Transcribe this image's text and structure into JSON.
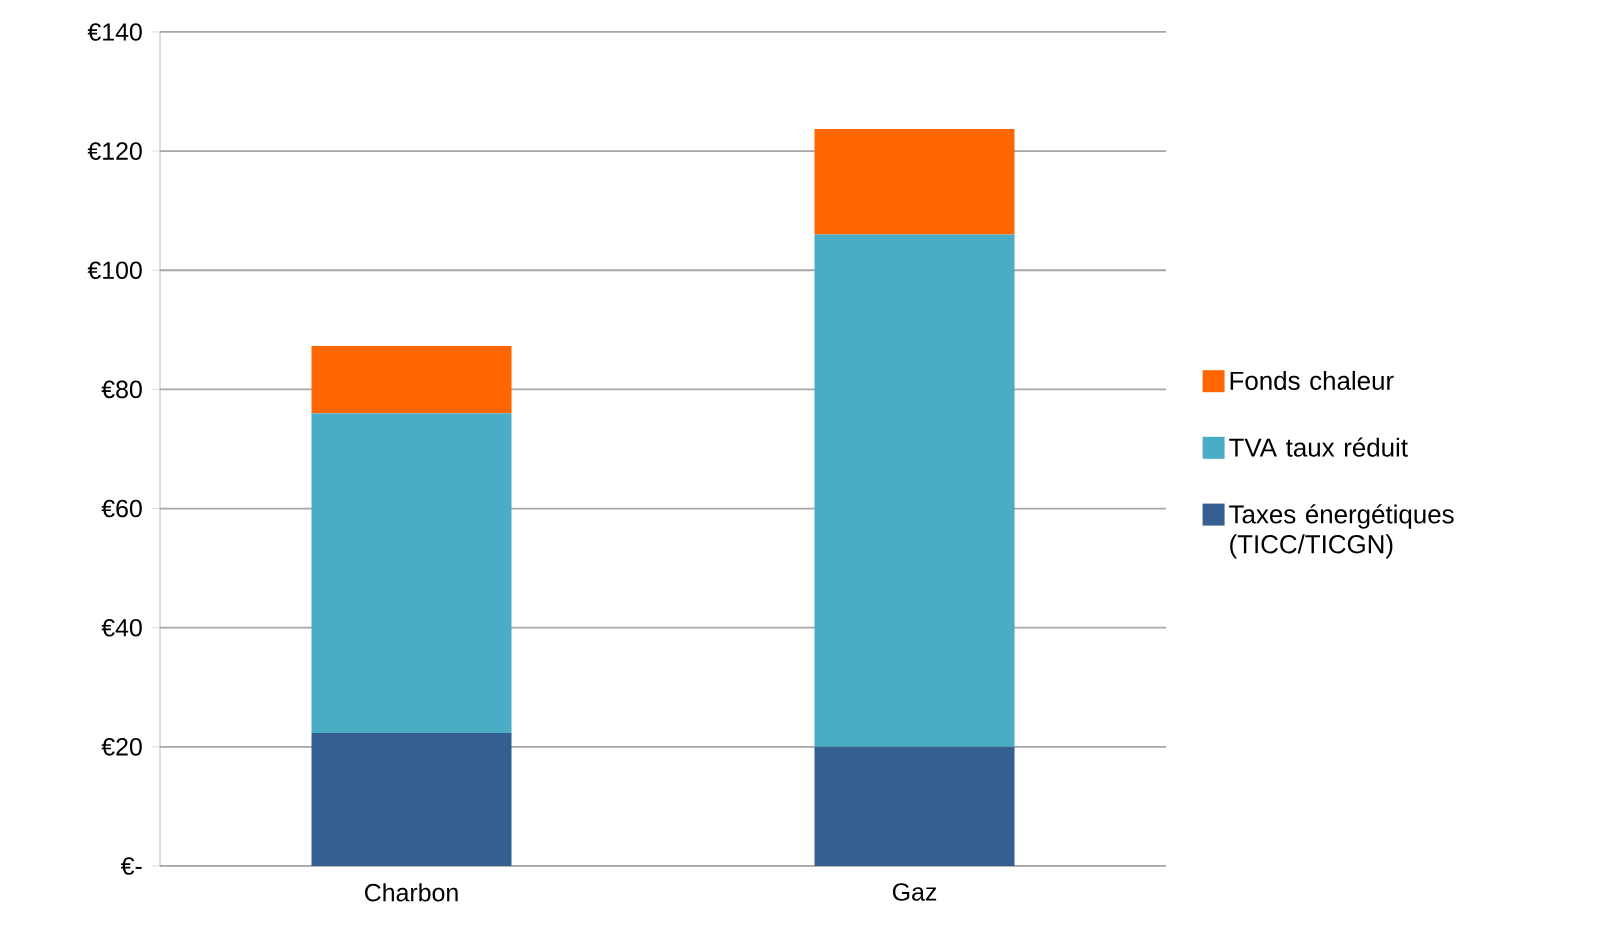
{
  "chart_data": {
    "type": "bar",
    "stacked": true,
    "categories": [
      "Charbon",
      "Gaz"
    ],
    "series": [
      {
        "name": "Taxes énergétiques (TICC/TICGN)",
        "color": "#365f91",
        "values": [
          22.3,
          20
        ]
      },
      {
        "name": "TVA taux réduit",
        "color": "#4bacc6",
        "values": [
          53.7,
          86
        ]
      },
      {
        "name": "Fonds chaleur",
        "color": "#ff6600",
        "values": [
          11.3,
          17.7
        ]
      }
    ],
    "ylim": [
      0,
      140
    ],
    "yticks": [
      {
        "value": 0,
        "label": "€-"
      },
      {
        "value": 20,
        "label": "€20"
      },
      {
        "value": 40,
        "label": "€40"
      },
      {
        "value": 60,
        "label": "€60"
      },
      {
        "value": 80,
        "label": "€80"
      },
      {
        "value": 100,
        "label": "€100"
      },
      {
        "value": 120,
        "label": "€120"
      },
      {
        "value": 140,
        "label": "€140"
      }
    ],
    "grid": "y",
    "legend": "right"
  }
}
